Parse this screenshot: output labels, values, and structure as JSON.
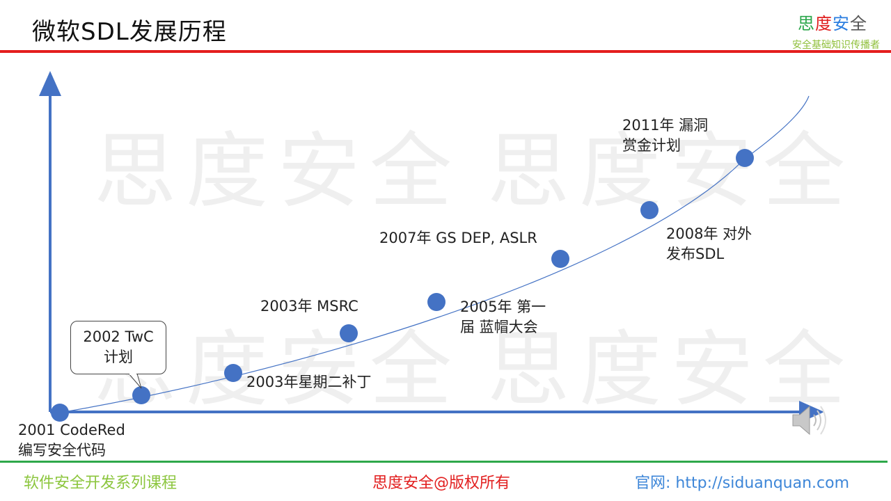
{
  "header": {
    "title": "微软SDL发展历程"
  },
  "brand": {
    "c1": "思",
    "c2": "度",
    "c3": "安",
    "c4": "全",
    "tagline": "安全基础知识传播者"
  },
  "watermarks": [
    "思度安全",
    "思度安全",
    "思度安全",
    "思度安全"
  ],
  "timeline": [
    {
      "id": "2001",
      "line1": "2001 CodeRed",
      "line2": "编写安全代码"
    },
    {
      "id": "2002",
      "line1": "2002  TwC",
      "line2": "计划"
    },
    {
      "id": "2003a",
      "line1": "2003年星期二补丁"
    },
    {
      "id": "2003b",
      "line1": "2003年 MSRC"
    },
    {
      "id": "2005",
      "line1": "2005年 第一",
      "line2": "届 蓝帽大会"
    },
    {
      "id": "2007",
      "line1": "2007年 GS DEP, ASLR"
    },
    {
      "id": "2008",
      "line1": "2008年 对外",
      "line2": "发布SDL"
    },
    {
      "id": "2011",
      "line1": "2011年 漏洞",
      "line2": "赏金计划"
    }
  ],
  "colors": {
    "accent": "#4472c4",
    "header_bar": "#e41e1e",
    "footer_bar": "#2ea84a"
  },
  "footer": {
    "left": "软件安全开发系列课程",
    "mid": "思度安全@版权所有",
    "right": "官网: http://siduanquan.com"
  }
}
